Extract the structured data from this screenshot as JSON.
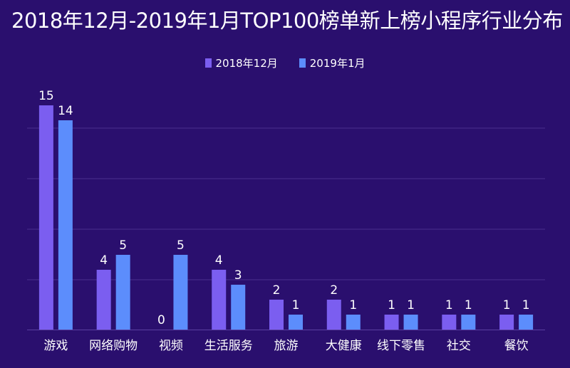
{
  "chart_data": {
    "type": "bar",
    "title": "2018年12月-2019年1月TOP100榜单新上榜小程序行业分布",
    "categories": [
      "游戏",
      "网络购物",
      "视频",
      "生活服务",
      "旅游",
      "大健康",
      "线下零售",
      "社交",
      "餐饮"
    ],
    "series": [
      {
        "name": "2018年12月",
        "values": [
          15,
          4,
          0,
          4,
          2,
          2,
          1,
          1,
          1
        ],
        "color": "#7b5ef0"
      },
      {
        "name": "2019年1月",
        "values": [
          14,
          5,
          5,
          3,
          1,
          1,
          1,
          1,
          1
        ],
        "color": "#5c8dfc"
      }
    ],
    "ylim": [
      0,
      15
    ],
    "grid": true,
    "legend_position": "top-center"
  }
}
